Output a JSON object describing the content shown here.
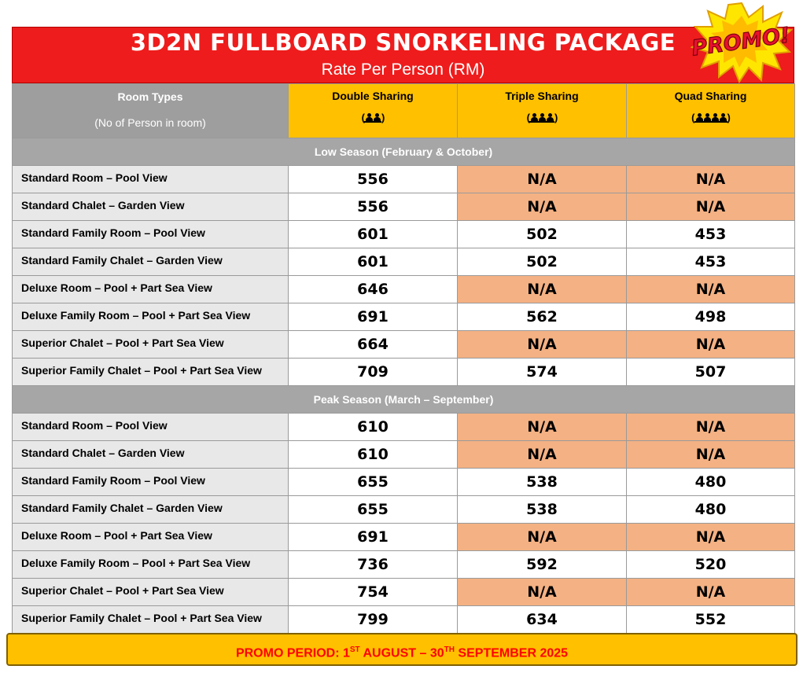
{
  "title": {
    "main": "3D2N FULLBOARD SNORKELING PACKAGE",
    "sub": "Rate Per Person (RM)"
  },
  "badge": {
    "label": "PROMO!",
    "icon": "promo-burst-icon"
  },
  "columns": {
    "room_types": "Room Types",
    "room_types_sub": "(No of Person in room)",
    "double": "Double Sharing",
    "triple": "Triple Sharing",
    "quad": "Quad Sharing"
  },
  "seasons": [
    {
      "name": "Low Season (February & October)",
      "rows": [
        {
          "room": "Standard Room – Pool View",
          "double": "556",
          "triple": "N/A",
          "quad": "N/A"
        },
        {
          "room": "Standard Chalet – Garden View",
          "double": "556",
          "triple": "N/A",
          "quad": "N/A"
        },
        {
          "room": "Standard Family Room – Pool View",
          "double": "601",
          "triple": "502",
          "quad": "453"
        },
        {
          "room": "Standard Family Chalet – Garden View",
          "double": "601",
          "triple": "502",
          "quad": "453"
        },
        {
          "room": "Deluxe Room – Pool + Part Sea View",
          "double": "646",
          "triple": "N/A",
          "quad": "N/A"
        },
        {
          "room": "Deluxe Family Room – Pool + Part Sea View",
          "double": "691",
          "triple": "562",
          "quad": "498"
        },
        {
          "room": "Superior Chalet – Pool + Part Sea View",
          "double": "664",
          "triple": "N/A",
          "quad": "N/A"
        },
        {
          "room": "Superior Family Chalet – Pool + Part Sea View",
          "double": "709",
          "triple": "574",
          "quad": "507"
        }
      ]
    },
    {
      "name": "Peak Season (March – September)",
      "rows": [
        {
          "room": "Standard Room – Pool View",
          "double": "610",
          "triple": "N/A",
          "quad": "N/A"
        },
        {
          "room": "Standard Chalet – Garden View",
          "double": "610",
          "triple": "N/A",
          "quad": "N/A"
        },
        {
          "room": "Standard Family Room – Pool View",
          "double": "655",
          "triple": "538",
          "quad": "480"
        },
        {
          "room": "Standard Family Chalet – Garden View",
          "double": "655",
          "triple": "538",
          "quad": "480"
        },
        {
          "room": "Deluxe Room – Pool + Part Sea View",
          "double": "691",
          "triple": "N/A",
          "quad": "N/A"
        },
        {
          "room": "Deluxe Family Room – Pool + Part Sea View",
          "double": "736",
          "triple": "592",
          "quad": "520"
        },
        {
          "room": "Superior Chalet – Pool + Part Sea View",
          "double": "754",
          "triple": "N/A",
          "quad": "N/A"
        },
        {
          "room": "Superior Family Chalet – Pool + Part Sea View",
          "double": "799",
          "triple": "634",
          "quad": "552"
        }
      ]
    }
  ],
  "promo": {
    "prefix": "PROMO PERIOD: 1",
    "sup1": "ST",
    "mid": " AUGUST – 30",
    "sup2": "TH",
    "suffix": " SEPTEMBER 2025"
  },
  "colors": {
    "title_red": "#ee1c1c",
    "header_gold": "#ffc000",
    "na_orange": "#f4b183",
    "season_gray": "#a6a6a6"
  }
}
